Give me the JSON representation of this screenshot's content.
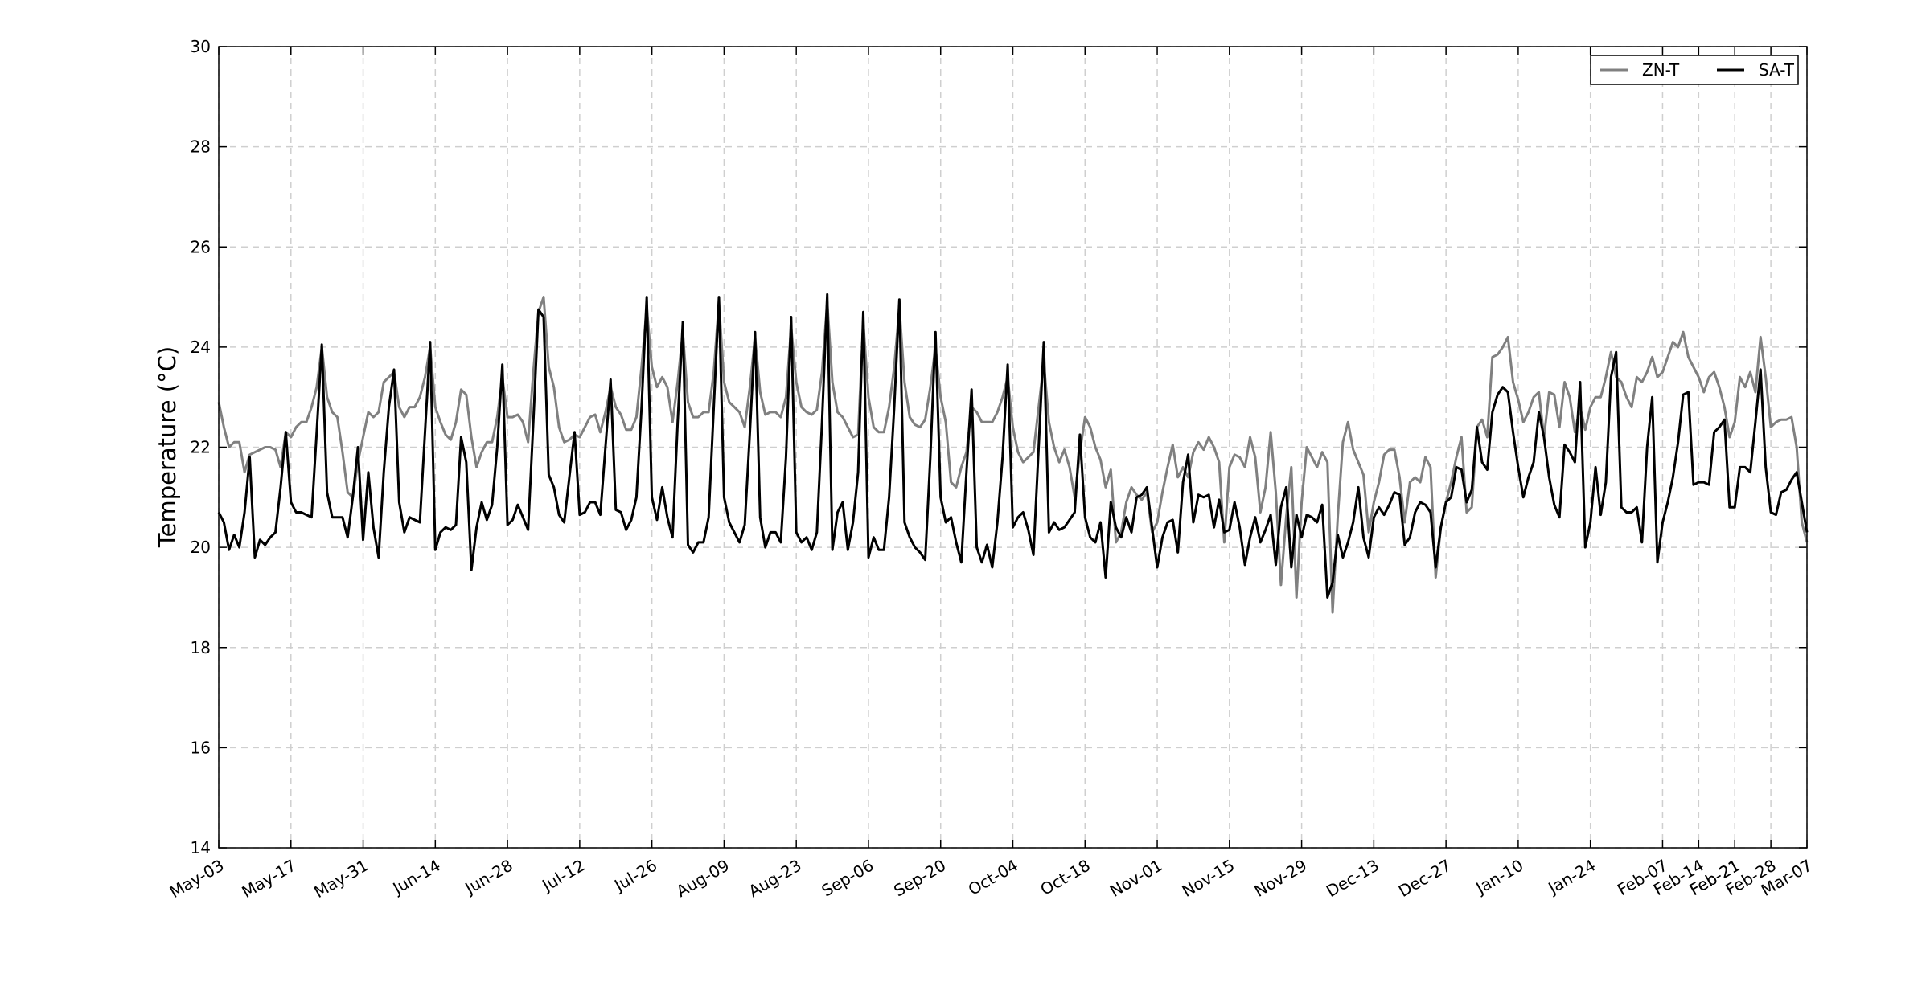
{
  "chart_data": {
    "type": "line",
    "ylabel": "Temperature (°C)",
    "x": [
      "May-03",
      "May-04",
      "May-05",
      "May-06",
      "May-07",
      "May-08",
      "May-09",
      "May-10",
      "May-11",
      "May-12",
      "May-13",
      "May-14",
      "May-15",
      "May-16",
      "May-17",
      "May-18",
      "May-19",
      "May-20",
      "May-21",
      "May-22",
      "May-23",
      "May-24",
      "May-25",
      "May-26",
      "May-27",
      "May-28",
      "May-29",
      "May-30",
      "May-31",
      "Jun-01",
      "Jun-02",
      "Jun-03",
      "Jun-04",
      "Jun-05",
      "Jun-06",
      "Jun-07",
      "Jun-08",
      "Jun-09",
      "Jun-10",
      "Jun-11",
      "Jun-12",
      "Jun-13",
      "Jun-14",
      "Jun-15",
      "Jun-16",
      "Jun-17",
      "Jun-18",
      "Jun-19",
      "Jun-20",
      "Jun-21",
      "Jun-22",
      "Jun-23",
      "Jun-24",
      "Jun-25",
      "Jun-26",
      "Jun-27",
      "Jun-28",
      "Jun-29",
      "Jun-30",
      "Jul-01",
      "Jul-02",
      "Jul-03",
      "Jul-04",
      "Jul-05",
      "Jul-06",
      "Jul-07",
      "Jul-08",
      "Jul-09",
      "Jul-10",
      "Jul-11",
      "Jul-12",
      "Jul-13",
      "Jul-14",
      "Jul-15",
      "Jul-16",
      "Jul-17",
      "Jul-18",
      "Jul-19",
      "Jul-20",
      "Jul-21",
      "Jul-22",
      "Jul-23",
      "Jul-24",
      "Jul-25",
      "Jul-26",
      "Jul-27",
      "Jul-28",
      "Jul-29",
      "Jul-30",
      "Jul-31",
      "Aug-01",
      "Aug-02",
      "Aug-03",
      "Aug-04",
      "Aug-05",
      "Aug-06",
      "Aug-07",
      "Aug-08",
      "Aug-09",
      "Aug-10",
      "Aug-11",
      "Aug-12",
      "Aug-13",
      "Aug-14",
      "Aug-15",
      "Aug-16",
      "Aug-17",
      "Aug-18",
      "Aug-19",
      "Aug-20",
      "Aug-21",
      "Aug-22",
      "Aug-23",
      "Aug-24",
      "Aug-25",
      "Aug-26",
      "Aug-27",
      "Aug-28",
      "Aug-29",
      "Aug-30",
      "Aug-31",
      "Sep-01",
      "Sep-02",
      "Sep-03",
      "Sep-04",
      "Sep-05",
      "Sep-06",
      "Sep-07",
      "Sep-08",
      "Sep-09",
      "Sep-10",
      "Sep-11",
      "Sep-12",
      "Sep-13",
      "Sep-14",
      "Sep-15",
      "Sep-16",
      "Sep-17",
      "Sep-18",
      "Sep-19",
      "Sep-20",
      "Sep-21",
      "Sep-22",
      "Sep-23",
      "Sep-24",
      "Sep-25",
      "Sep-26",
      "Sep-27",
      "Sep-28",
      "Sep-29",
      "Sep-30",
      "Oct-01",
      "Oct-02",
      "Oct-03",
      "Oct-04",
      "Oct-05",
      "Oct-06",
      "Oct-07",
      "Oct-08",
      "Oct-09",
      "Oct-10",
      "Oct-11",
      "Oct-12",
      "Oct-13",
      "Oct-14",
      "Oct-15",
      "Oct-16",
      "Oct-17",
      "Oct-18",
      "Oct-19",
      "Oct-20",
      "Oct-21",
      "Oct-22",
      "Oct-23",
      "Oct-24",
      "Oct-25",
      "Oct-26",
      "Oct-27",
      "Oct-28",
      "Oct-29",
      "Oct-30",
      "Oct-31",
      "Nov-01",
      "Nov-02",
      "Nov-03",
      "Nov-04",
      "Nov-05",
      "Nov-06",
      "Nov-07",
      "Nov-08",
      "Nov-09",
      "Nov-10",
      "Nov-11",
      "Nov-12",
      "Nov-13",
      "Nov-14",
      "Nov-15",
      "Nov-16",
      "Nov-17",
      "Nov-18",
      "Nov-19",
      "Nov-20",
      "Nov-21",
      "Nov-22",
      "Nov-23",
      "Nov-24",
      "Nov-25",
      "Nov-26",
      "Nov-27",
      "Nov-28",
      "Nov-29",
      "Nov-30",
      "Dec-01",
      "Dec-02",
      "Dec-03",
      "Dec-04",
      "Dec-05",
      "Dec-06",
      "Dec-07",
      "Dec-08",
      "Dec-09",
      "Dec-10",
      "Dec-11",
      "Dec-12",
      "Dec-13",
      "Dec-14",
      "Dec-15",
      "Dec-16",
      "Dec-17",
      "Dec-18",
      "Dec-19",
      "Dec-20",
      "Dec-21",
      "Dec-22",
      "Dec-23",
      "Dec-24",
      "Dec-25",
      "Dec-26",
      "Dec-27",
      "Dec-28",
      "Dec-29",
      "Dec-30",
      "Dec-31",
      "Jan-01",
      "Jan-02",
      "Jan-03",
      "Jan-04",
      "Jan-05",
      "Jan-06",
      "Jan-07",
      "Jan-08",
      "Jan-09",
      "Jan-10",
      "Jan-11",
      "Jan-12",
      "Jan-13",
      "Jan-14",
      "Jan-15",
      "Jan-16",
      "Jan-17",
      "Jan-18",
      "Jan-19",
      "Jan-20",
      "Jan-21",
      "Jan-22",
      "Jan-23",
      "Jan-24",
      "Jan-25",
      "Jan-26",
      "Jan-27",
      "Jan-28",
      "Jan-29",
      "Jan-30",
      "Jan-31",
      "Feb-01",
      "Feb-02",
      "Feb-03",
      "Feb-04",
      "Feb-05",
      "Feb-06",
      "Feb-07",
      "Feb-08",
      "Feb-09",
      "Feb-10",
      "Feb-11",
      "Feb-12",
      "Feb-13",
      "Feb-14",
      "Feb-15",
      "Feb-16",
      "Feb-17",
      "Feb-18",
      "Feb-19",
      "Feb-20",
      "Feb-21",
      "Feb-22",
      "Feb-23",
      "Feb-24",
      "Feb-25",
      "Feb-26",
      "Feb-27",
      "Feb-28",
      "Mar-01",
      "Mar-02",
      "Mar-03",
      "Mar-04",
      "Mar-05",
      "Mar-06",
      "Mar-07"
    ],
    "xlim": [
      "May-03",
      "Mar-07"
    ],
    "xticks": [
      "May-03",
      "May-17",
      "May-31",
      "Jun-14",
      "Jun-28",
      "Jul-12",
      "Jul-26",
      "Aug-09",
      "Aug-23",
      "Sep-06",
      "Sep-20",
      "Oct-04",
      "Oct-18",
      "Nov-01",
      "Nov-15",
      "Nov-29",
      "Dec-13",
      "Dec-27",
      "Jan-10",
      "Jan-24",
      "Feb-07",
      "Feb-14",
      "Feb-21",
      "Feb-21",
      "Feb-28",
      "Mar-07"
    ],
    "ylim": [
      14,
      30
    ],
    "yticks": [
      14,
      16,
      18,
      20,
      22,
      24,
      26,
      28,
      30
    ],
    "grid": true,
    "legend": "upper right",
    "series": [
      {
        "name": "ZN-T",
        "color": "#808080",
        "values": [
          22.9,
          22.4,
          22.0,
          22.1,
          22.1,
          21.5,
          21.85,
          21.9,
          21.95,
          22.0,
          22.0,
          21.95,
          21.6,
          22.3,
          22.2,
          22.4,
          22.5,
          22.5,
          22.8,
          23.2,
          24.0,
          23.0,
          22.7,
          22.6,
          21.9,
          21.1,
          21.0,
          21.7,
          22.2,
          22.7,
          22.6,
          22.7,
          23.3,
          23.4,
          23.5,
          22.8,
          22.6,
          22.8,
          22.8,
          23.0,
          23.4,
          24.0,
          22.8,
          22.5,
          22.25,
          22.15,
          22.5,
          23.15,
          23.05,
          22.2,
          21.6,
          21.9,
          22.1,
          22.1,
          22.6,
          23.4,
          22.6,
          22.6,
          22.65,
          22.5,
          22.1,
          23.5,
          24.7,
          25.0,
          23.6,
          23.2,
          22.4,
          22.1,
          22.15,
          22.25,
          22.2,
          22.4,
          22.6,
          22.65,
          22.3,
          22.7,
          23.2,
          22.8,
          22.65,
          22.35,
          22.35,
          22.6,
          23.6,
          24.8,
          23.6,
          23.2,
          23.4,
          23.2,
          22.5,
          23.3,
          24.3,
          22.9,
          22.6,
          22.6,
          22.7,
          22.7,
          23.5,
          24.9,
          23.3,
          22.9,
          22.8,
          22.7,
          22.4,
          23.2,
          24.2,
          23.1,
          22.65,
          22.7,
          22.7,
          22.6,
          23.0,
          24.4,
          23.3,
          22.8,
          22.7,
          22.65,
          22.75,
          23.5,
          24.9,
          23.3,
          22.7,
          22.6,
          22.4,
          22.2,
          22.25,
          24.5,
          23.0,
          22.4,
          22.3,
          22.3,
          22.8,
          23.6,
          24.8,
          23.3,
          22.6,
          22.45,
          22.4,
          22.55,
          23.2,
          24.0,
          23.0,
          22.5,
          21.3,
          21.2,
          21.6,
          21.9,
          22.8,
          22.7,
          22.5,
          22.5,
          22.5,
          22.7,
          23.0,
          23.4,
          22.4,
          21.9,
          21.7,
          21.8,
          21.9,
          22.8,
          23.7,
          22.5,
          22.0,
          21.7,
          21.95,
          21.6,
          21.0,
          21.9,
          22.6,
          22.4,
          22.0,
          21.75,
          21.2,
          21.55,
          20.1,
          20.3,
          20.9,
          21.2,
          21.05,
          20.95,
          21.1,
          20.3,
          20.5,
          21.1,
          21.6,
          22.05,
          21.4,
          21.6,
          21.4,
          21.9,
          22.1,
          21.95,
          22.2,
          22.0,
          21.7,
          20.1,
          21.6,
          21.85,
          21.8,
          21.6,
          22.2,
          21.8,
          20.7,
          21.2,
          22.3,
          21.1,
          19.25,
          20.6,
          21.6,
          19.0,
          20.9,
          22.0,
          21.8,
          21.6,
          21.9,
          21.7,
          18.7,
          20.6,
          22.1,
          22.5,
          21.95,
          21.7,
          21.45,
          20.3,
          20.9,
          21.3,
          21.85,
          21.95,
          21.95,
          21.4,
          20.5,
          21.3,
          21.4,
          21.3,
          21.8,
          21.6,
          19.4,
          20.4,
          20.9,
          21.3,
          21.8,
          22.2,
          20.7,
          20.8,
          22.4,
          22.55,
          22.2,
          23.8,
          23.85,
          24.0,
          24.2,
          23.3,
          22.95,
          22.5,
          22.7,
          23.0,
          23.1,
          22.2,
          23.1,
          23.05,
          22.4,
          23.3,
          23.0,
          22.3,
          22.8,
          22.35,
          22.8,
          23.0,
          23.0,
          23.4,
          23.9,
          23.4,
          23.3,
          23.0,
          22.8,
          23.4,
          23.3,
          23.5,
          23.8,
          23.4,
          23.5,
          23.8,
          24.1,
          24.0,
          24.3,
          23.8,
          23.6,
          23.4,
          23.1,
          23.4,
          23.5,
          23.2,
          22.8,
          22.2,
          22.5,
          23.4,
          23.2,
          23.5,
          23.1,
          24.2,
          23.4,
          22.4,
          22.5,
          22.55,
          22.55,
          22.6,
          22.0,
          20.5,
          20.1
        ]
      },
      {
        "name": "SA-T",
        "color": "#000000",
        "values": [
          20.7,
          20.5,
          19.95,
          20.25,
          20.0,
          20.7,
          21.8,
          19.8,
          20.15,
          20.05,
          20.2,
          20.3,
          21.2,
          22.3,
          20.9,
          20.7,
          20.7,
          20.65,
          20.6,
          22.3,
          24.05,
          21.1,
          20.6,
          20.6,
          20.6,
          20.2,
          21.0,
          22.0,
          20.15,
          21.5,
          20.4,
          19.8,
          21.5,
          22.8,
          23.55,
          20.9,
          20.3,
          20.6,
          20.55,
          20.5,
          22.3,
          24.1,
          19.95,
          20.3,
          20.4,
          20.35,
          20.45,
          22.2,
          21.7,
          19.55,
          20.4,
          20.9,
          20.55,
          20.85,
          22.0,
          23.65,
          20.45,
          20.55,
          20.85,
          20.6,
          20.35,
          22.5,
          24.75,
          24.6,
          21.45,
          21.2,
          20.65,
          20.5,
          21.4,
          22.3,
          20.65,
          20.7,
          20.9,
          20.9,
          20.65,
          22.0,
          23.35,
          20.75,
          20.7,
          20.35,
          20.55,
          21.0,
          22.8,
          25.0,
          21.0,
          20.55,
          21.2,
          20.6,
          20.2,
          22.5,
          24.5,
          20.05,
          19.9,
          20.1,
          20.1,
          20.6,
          22.8,
          25.0,
          21.0,
          20.5,
          20.3,
          20.1,
          20.45,
          22.3,
          24.3,
          20.6,
          20.0,
          20.3,
          20.3,
          20.1,
          21.8,
          24.6,
          20.3,
          20.1,
          20.2,
          19.95,
          20.3,
          22.5,
          25.05,
          19.95,
          20.7,
          20.9,
          19.95,
          20.5,
          21.5,
          24.7,
          19.8,
          20.2,
          19.95,
          19.95,
          21.0,
          22.8,
          24.95,
          20.5,
          20.2,
          20.0,
          19.9,
          19.75,
          21.8,
          24.3,
          21.0,
          20.5,
          20.6,
          20.1,
          19.7,
          21.5,
          23.15,
          20.0,
          19.7,
          20.05,
          19.6,
          20.5,
          21.8,
          23.65,
          20.4,
          20.6,
          20.7,
          20.35,
          19.85,
          22.0,
          24.1,
          20.3,
          20.5,
          20.35,
          20.4,
          20.55,
          20.7,
          22.25,
          20.6,
          20.2,
          20.1,
          20.5,
          19.4,
          20.9,
          20.4,
          20.2,
          20.6,
          20.3,
          21.0,
          21.05,
          21.2,
          20.4,
          19.6,
          20.2,
          20.5,
          20.55,
          19.9,
          21.3,
          21.85,
          20.5,
          21.05,
          21.0,
          21.05,
          20.4,
          20.95,
          20.3,
          20.35,
          20.9,
          20.4,
          19.65,
          20.2,
          20.6,
          20.1,
          20.35,
          20.65,
          19.65,
          20.8,
          21.2,
          19.6,
          20.65,
          20.2,
          20.65,
          20.6,
          20.5,
          20.85,
          19.0,
          19.3,
          20.25,
          19.8,
          20.1,
          20.5,
          21.2,
          20.2,
          19.8,
          20.6,
          20.8,
          20.65,
          20.85,
          21.1,
          21.05,
          20.05,
          20.2,
          20.7,
          20.9,
          20.85,
          20.7,
          19.6,
          20.4,
          20.9,
          21.0,
          21.6,
          21.55,
          20.9,
          21.15,
          22.4,
          21.7,
          21.55,
          22.7,
          23.05,
          23.2,
          23.1,
          22.3,
          21.6,
          21.0,
          21.4,
          21.7,
          22.7,
          22.2,
          21.4,
          20.85,
          20.6,
          22.05,
          21.9,
          21.7,
          23.3,
          20.0,
          20.5,
          21.6,
          20.65,
          21.3,
          23.4,
          23.9,
          20.8,
          20.7,
          20.7,
          20.8,
          20.1,
          22.0,
          23.0,
          19.7,
          20.5,
          20.9,
          21.4,
          22.1,
          23.05,
          23.1,
          21.25,
          21.3,
          21.3,
          21.25,
          22.3,
          22.4,
          22.55,
          20.8,
          20.8,
          21.6,
          21.6,
          21.5,
          22.5,
          23.55,
          21.6,
          20.7,
          20.65,
          21.1,
          21.15,
          21.35,
          21.5,
          20.9,
          20.3
        ]
      }
    ]
  }
}
